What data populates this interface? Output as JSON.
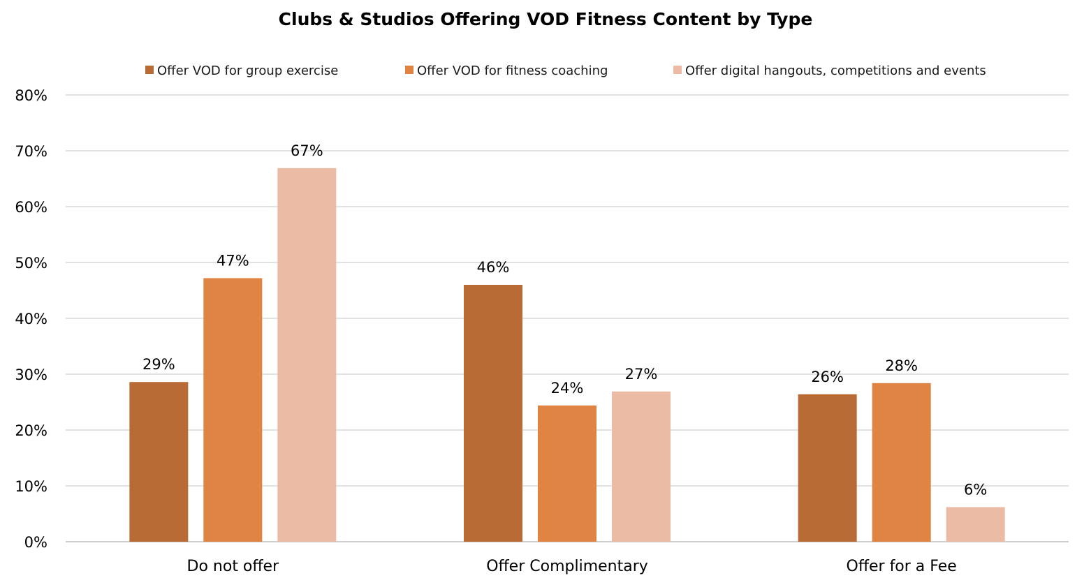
{
  "chart_data": {
    "type": "bar",
    "title": "Clubs & Studios Offering VOD Fitness Content by Type",
    "categories": [
      "Do not offer",
      "Offer Complimentary",
      "Offer for a Fee"
    ],
    "series": [
      {
        "name": "Offer VOD for group exercise",
        "color": "#B86B35",
        "values": [
          29,
          46,
          26
        ],
        "labels": [
          "29%",
          "46%",
          "26%"
        ],
        "bar_values": [
          28.6,
          46.0,
          26.4
        ]
      },
      {
        "name": "Offer VOD for fitness coaching",
        "color": "#E08444",
        "values": [
          47,
          24,
          28
        ],
        "labels": [
          "47%",
          "24%",
          "28%"
        ],
        "bar_values": [
          47.2,
          24.4,
          28.4
        ]
      },
      {
        "name": "Offer digital hangouts, competitions and events",
        "color": "#EBBBA6",
        "values": [
          67,
          27,
          6
        ],
        "labels": [
          "67%",
          "27%",
          "6%"
        ],
        "bar_values": [
          66.9,
          26.9,
          6.2
        ]
      }
    ],
    "ylim": [
      0,
      80
    ],
    "yticks": [
      0,
      10,
      20,
      30,
      40,
      50,
      60,
      70,
      80
    ],
    "ytick_labels": [
      "0%",
      "10%",
      "20%",
      "30%",
      "40%",
      "50%",
      "60%",
      "70%",
      "80%"
    ],
    "xlabel": "",
    "ylabel": "",
    "grid": true,
    "legend_position": "top"
  }
}
